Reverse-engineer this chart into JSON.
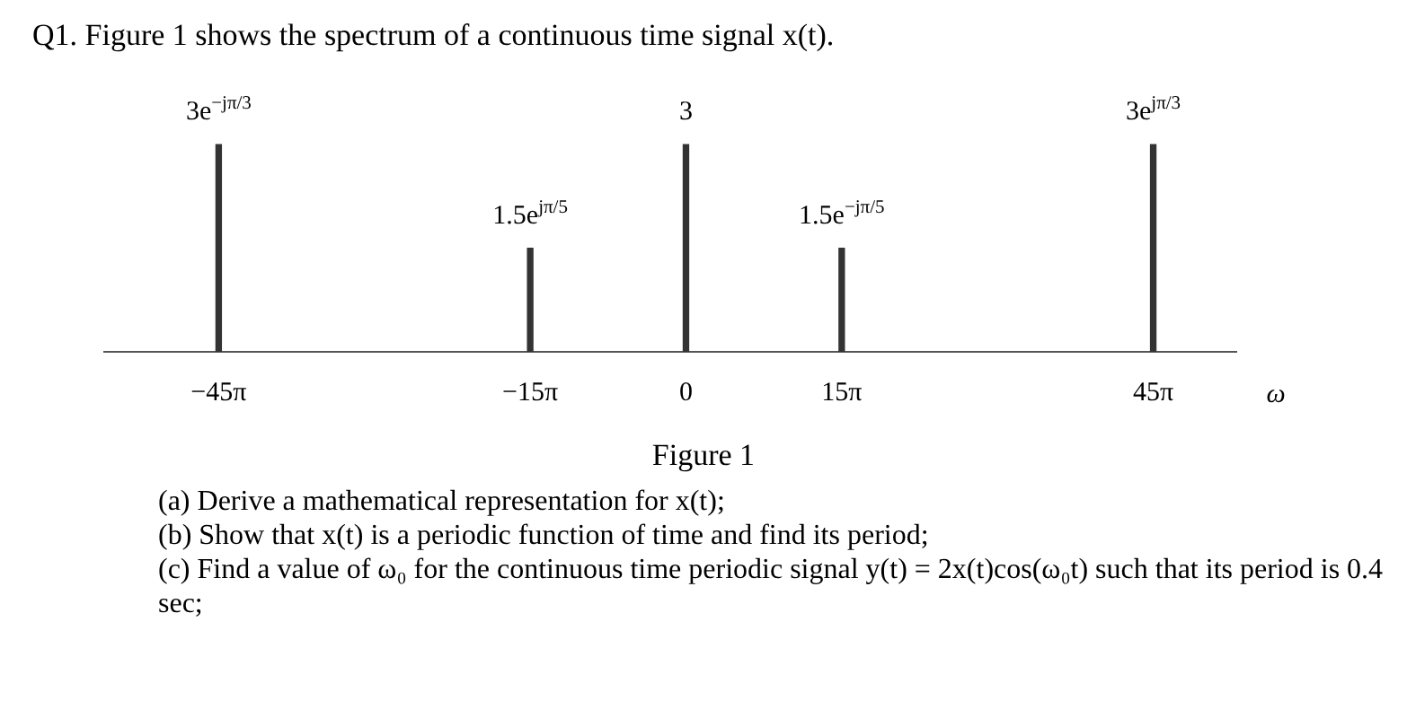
{
  "chart_data": {
    "type": "bar",
    "title": "Q1.  Figure 1 shows the spectrum of a continuous time signal x(t).",
    "tick_labels": "x",
    "color": "#333333",
    "x": [
      -141.37,
      -47.12,
      0,
      47.12,
      141.37
    ],
    "values": [
      3,
      1.5,
      3,
      1.5,
      3
    ],
    "value_labels": [
      "3e$^{−jπ/3}$",
      "1.5e$^{jπ/5}$",
      "3",
      "1.5e$^{−jπ/5}$",
      "3e$^{jπ/3}$"
    ],
    "xlim": [
      -176,
      166.5
    ],
    "xticks": [
      {
        "value": -141.37,
        "label": "−45π"
      },
      {
        "value": -47.12,
        "label": "−15π"
      },
      {
        "value": 0,
        "label": "0"
      },
      {
        "value": 47.12,
        "label": "15π"
      },
      {
        "value": 141.37,
        "label": "45π"
      }
    ],
    "xlabel": "ω",
    "annotations": [
      "Figure 1",
      "(a) Derive a mathematical representation for x(t);",
      "(b) Show that x(t) is a periodic function of time and find its period;",
      "(c) Find a value of ω₀ for the continuous time periodic signal y(t) = 2x(t)cos(ω₀t) such that its period is 0.4 sec;"
    ]
  }
}
